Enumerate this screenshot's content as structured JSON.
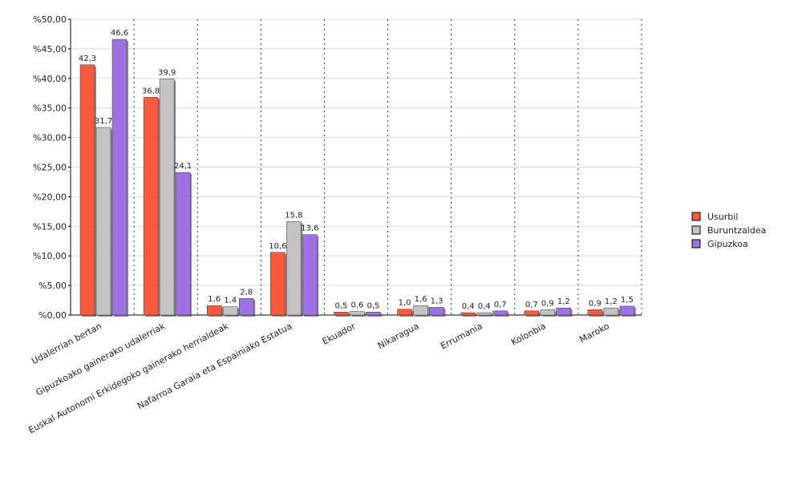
{
  "chart_data": {
    "type": "bar",
    "categories": [
      "Udalerrian bertan",
      "Gipuzkoako gainerako udalerriak",
      "Euskal Autonomi Erkidegoko gainerako herrialdeak",
      "Nafarroa Garaia eta Espainiako Estatua",
      "Ekuador",
      "Nikaragua",
      "Errumania",
      "Kolonbia",
      "Maroko"
    ],
    "series": [
      {
        "name": "Usurbil",
        "color": "#fa5a3c",
        "values": [
          42.3,
          36.8,
          1.6,
          10.6,
          0.5,
          1.0,
          0.4,
          0.7,
          0.9
        ],
        "value_labels": [
          "42,3",
          "36,8",
          "1,6",
          "10,6",
          "0,5",
          "1,0",
          "0,4",
          "0,7",
          "0,9"
        ]
      },
      {
        "name": "Buruntzaldea",
        "color": "#c3c3c3",
        "values": [
          31.7,
          39.9,
          1.4,
          15.8,
          0.6,
          1.6,
          0.4,
          0.9,
          1.2
        ],
        "value_labels": [
          "31,7",
          "39,9",
          "1,4",
          "15,8",
          "0,6",
          "1,6",
          "0,4",
          "0,9",
          "1,2"
        ]
      },
      {
        "name": "Gipuzkoa",
        "color": "#9f72e3",
        "values": [
          46.6,
          24.1,
          2.8,
          13.6,
          0.5,
          1.3,
          0.7,
          1.2,
          1.5
        ],
        "value_labels": [
          "46,6",
          "24,1",
          "2,8",
          "13,6",
          "0,5",
          "1,3",
          "0,7",
          "1,2",
          "1,5"
        ]
      }
    ],
    "ylim": [
      0,
      50
    ],
    "yticks": [
      {
        "value": 0,
        "label": "%0,00"
      },
      {
        "value": 5,
        "label": "%5,00"
      },
      {
        "value": 10,
        "label": "%10,00"
      },
      {
        "value": 15,
        "label": "%15,00"
      },
      {
        "value": 20,
        "label": "%20,00"
      },
      {
        "value": 25,
        "label": "%25,00"
      },
      {
        "value": 30,
        "label": "%30,00"
      },
      {
        "value": 35,
        "label": "%35,00"
      },
      {
        "value": 40,
        "label": "%40,00"
      },
      {
        "value": 45,
        "label": "%45,00"
      },
      {
        "value": 50,
        "label": "%50,00"
      }
    ],
    "grid": true,
    "legend": "right"
  }
}
